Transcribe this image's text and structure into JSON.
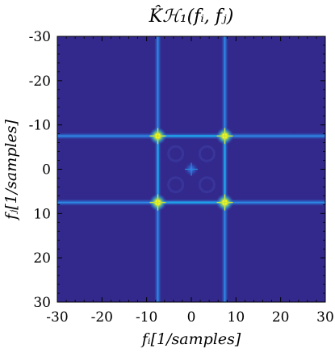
{
  "chart_data": {
    "type": "heatmap",
    "title": "K̂ℋ₁(fᵢ, fⱼ)",
    "xlabel": "fᵢ[1/samples]",
    "ylabel": "fⱼ[1/samples]",
    "xlim": [
      -30,
      30
    ],
    "ylim": [
      30,
      -30
    ],
    "y_axis_inverted": true,
    "xticks": [
      "-30",
      "-20",
      "-10",
      "0",
      "10",
      "20",
      "30"
    ],
    "yticks": [
      "-30",
      "-20",
      "-10",
      "0",
      "10",
      "20",
      "30"
    ],
    "colormap": "parula",
    "background_color": "#33298c",
    "line_color": "#2a74d6",
    "peak_color": "#f9fb0e",
    "peaks": [
      {
        "fi": -7.5,
        "fj": -7.5,
        "value": 1.0
      },
      {
        "fi": 7.5,
        "fj": -7.5,
        "value": 1.0
      },
      {
        "fi": -7.5,
        "fj": 7.5,
        "value": 1.0
      },
      {
        "fi": 7.5,
        "fj": 7.5,
        "value": 1.0
      },
      {
        "fi": 0,
        "fj": 0,
        "value": 0.35
      }
    ],
    "ridges": {
      "fi": [
        -7.5,
        7.5
      ],
      "fj": [
        -7.5,
        7.5
      ]
    },
    "grid": false
  }
}
